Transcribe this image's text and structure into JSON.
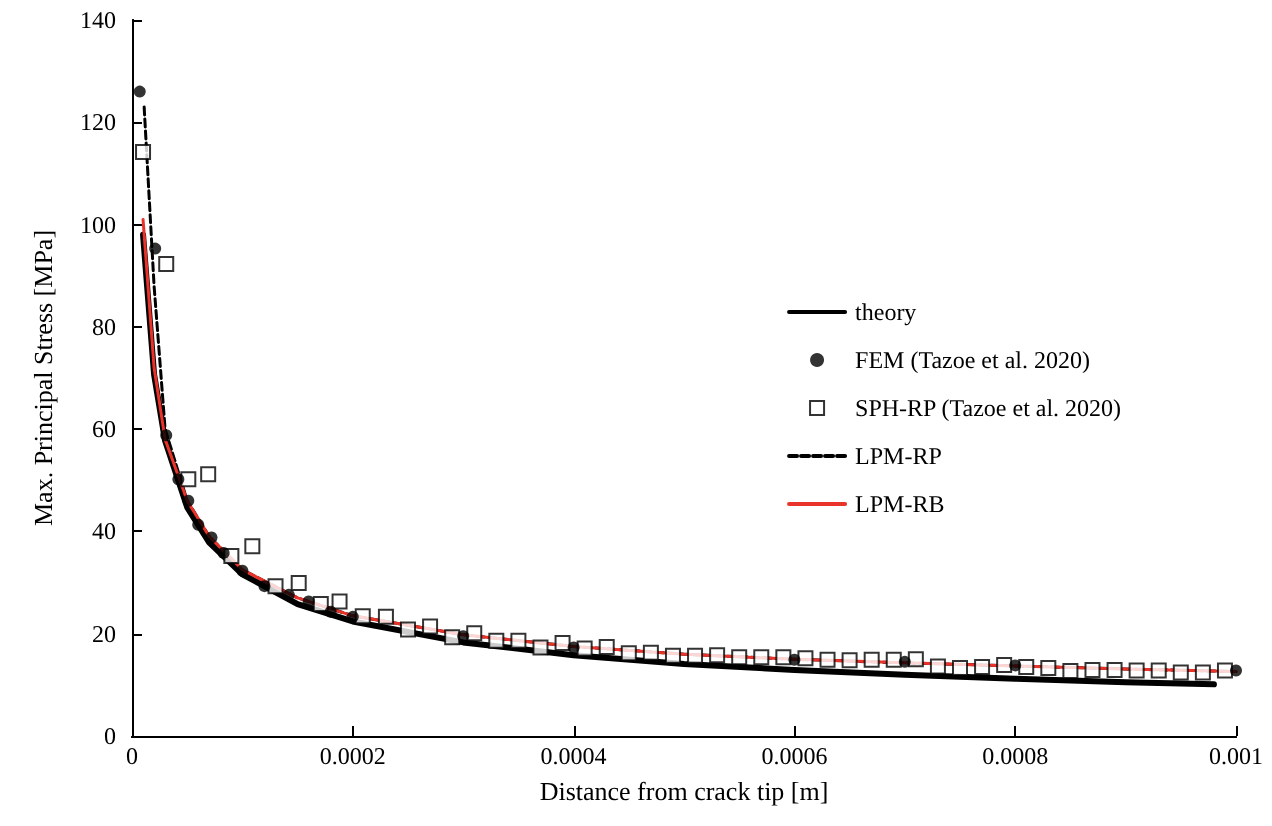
{
  "chart_data": {
    "type": "line",
    "xlabel": "Distance from crack tip [m]",
    "ylabel": "Max. Principal Stress [MPa]",
    "xlim": [
      0,
      0.001
    ],
    "xticks": [
      0,
      0.0002,
      0.0004,
      0.0006,
      0.0008,
      0.001
    ],
    "ylim": [
      0,
      140
    ],
    "yticks": [
      0,
      20,
      40,
      60,
      80,
      100,
      120,
      140
    ],
    "grid": false,
    "legend": "right",
    "series": [
      {
        "name": "theory",
        "color": "#000000",
        "line_style": "solid",
        "marker": "none",
        "x": [
          1e-05,
          2e-05,
          3e-05,
          5e-05,
          7e-05,
          0.0001,
          0.00015,
          0.0002,
          0.0003,
          0.0004,
          0.0005,
          0.0006,
          0.0007,
          0.0008,
          0.0009,
          0.00098
        ],
        "values": [
          98,
          70.7,
          57.7,
          44.7,
          37.8,
          31.6,
          25.8,
          22.4,
          18.3,
          15.8,
          14.1,
          12.9,
          12.0,
          11.2,
          10.5,
          10.1
        ]
      },
      {
        "name": "FEM (Tazoe et al. 2020)",
        "type": "scatter",
        "color": "#000000",
        "marker": "circle",
        "x": [
          7e-06,
          2.1e-05,
          3.1e-05,
          4.2e-05,
          5.1e-05,
          6e-05,
          7.2e-05,
          8.3e-05,
          0.0001,
          0.00012,
          0.000142,
          0.00016,
          0.00018,
          0.0002,
          0.0003,
          0.0004,
          0.0006,
          0.0007,
          0.0008,
          0.001
        ],
        "values": [
          126,
          95.3,
          58.8,
          50.2,
          46,
          41.3,
          38.8,
          35.8,
          32.3,
          29.3,
          27.6,
          26.3,
          24.3,
          23.3,
          19.5,
          17.3,
          14.9,
          14.5,
          13.8,
          12.8
        ]
      },
      {
        "name": "SPH-RP (Tazoe et al. 2020)",
        "type": "scatter",
        "color": "#000000",
        "marker": "square",
        "x": [
          1e-05,
          3.1e-05,
          5.1e-05,
          6.9e-05,
          9e-05,
          0.000109,
          0.00013,
          0.000151,
          0.000171,
          0.000188,
          0.000209,
          0.00023,
          0.00025,
          0.00027,
          0.00029,
          0.00031,
          0.00033,
          0.00035,
          0.00037,
          0.00039,
          0.00041,
          0.00043,
          0.00045,
          0.00047,
          0.00049,
          0.00051,
          0.00053,
          0.00055,
          0.00057,
          0.00059,
          0.00061,
          0.00063,
          0.00065,
          0.00067,
          0.00069,
          0.00071,
          0.00073,
          0.00075,
          0.00077,
          0.00079,
          0.00081,
          0.00083,
          0.00085,
          0.00087,
          0.00089,
          0.00091,
          0.00093,
          0.00095,
          0.00097,
          0.00099
        ],
        "values": [
          114.2,
          92.3,
          50.2,
          51.2,
          35.2,
          37.1,
          29.3,
          29.9,
          25.8,
          26.3,
          23.4,
          23.3,
          20.8,
          21.4,
          19.3,
          20.1,
          18.6,
          18.6,
          17.3,
          18.2,
          17.1,
          17.4,
          16.2,
          16.3,
          15.7,
          15.7,
          15.8,
          15.4,
          15.4,
          15.4,
          15.2,
          14.9,
          14.8,
          14.9,
          14.9,
          15.0,
          13.6,
          13.3,
          13.5,
          13.9,
          13.5,
          13.3,
          12.7,
          12.9,
          12.9,
          12.8,
          12.8,
          12.4,
          12.4,
          12.8
        ]
      },
      {
        "name": "LPM-RP",
        "color": "#000000",
        "line_style": "dashed",
        "marker": "none",
        "x": [
          1.1e-05,
          2e-05,
          3e-05,
          5e-05,
          7e-05,
          0.0001,
          0.00015,
          0.0002,
          0.0003,
          0.0004,
          0.0005,
          0.0006,
          0.0007,
          0.0008,
          0.0009,
          0.001
        ],
        "values": [
          123,
          88,
          60,
          46,
          39,
          32.5,
          27,
          23.5,
          19.8,
          17.5,
          16,
          15,
          14.3,
          13.7,
          13.1,
          12.6
        ]
      },
      {
        "name": "LPM-RB",
        "color": "#e8322a",
        "line_style": "solid",
        "marker": "none",
        "x": [
          1e-05,
          2e-05,
          3e-05,
          5e-05,
          7e-05,
          0.0001,
          0.00015,
          0.0002,
          0.0003,
          0.0004,
          0.0005,
          0.0006,
          0.0007,
          0.0008,
          0.0009,
          0.001
        ],
        "values": [
          101,
          72,
          58,
          46,
          39,
          32.5,
          27,
          23.5,
          19.8,
          17.5,
          16,
          15,
          14.3,
          13.7,
          13.1,
          12.6
        ]
      }
    ]
  }
}
